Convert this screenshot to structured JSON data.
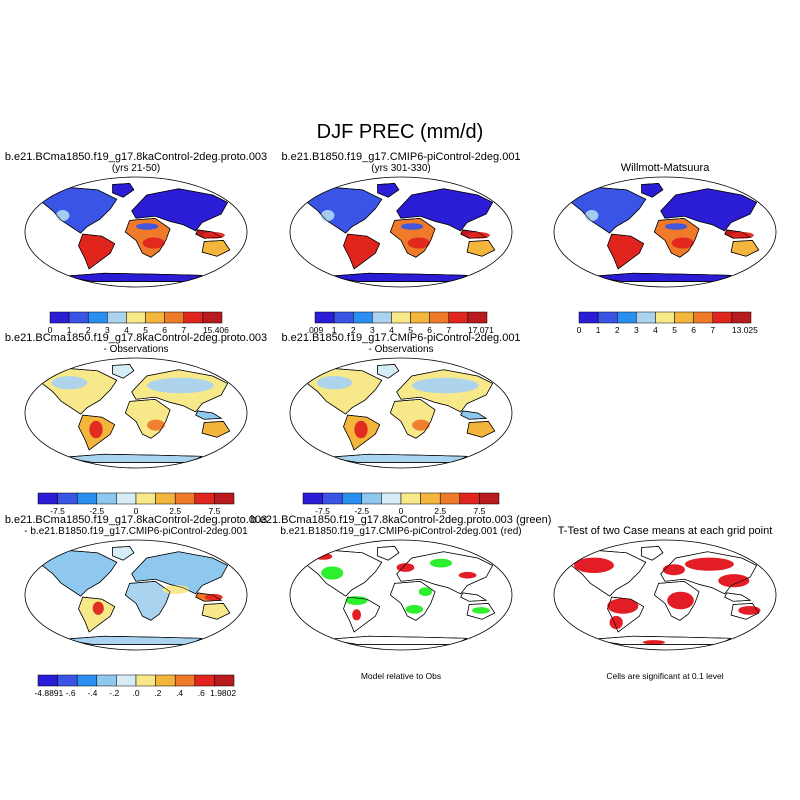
{
  "chart_data": {
    "type": "map-panel-grid",
    "title": "DJF PREC (mm/d)",
    "panels": [
      {
        "id": "p1",
        "type": "map",
        "title_lines": [
          "b.e21.BCma1850.f19_g17.8kaControl-2deg.proto.003",
          "(yrs 21-50)"
        ],
        "kind": "absolute",
        "colorbar": {
          "labels": [
            "0",
            "1",
            "2",
            "3",
            "4",
            "5",
            "6",
            "7",
            "15.406"
          ],
          "colors": [
            "#2b1cd6",
            "#3a55e6",
            "#2a8ff0",
            "#a9d3ef",
            "#f7e88a",
            "#f4b53c",
            "#ee7a2a",
            "#e0251e",
            "#b81a1e"
          ]
        }
      },
      {
        "id": "p2",
        "type": "map",
        "title_lines": [
          "b.e21.B1850.f19_g17.CMIP6-piControl-2deg.001",
          "(yrs 301-330)"
        ],
        "kind": "absolute",
        "colorbar": {
          "labels": [
            ".009",
            "1",
            "2",
            "3",
            "4",
            "5",
            "6",
            "7",
            "17.071"
          ],
          "colors": [
            "#2b1cd6",
            "#3a55e6",
            "#2a8ff0",
            "#a9d3ef",
            "#f7e88a",
            "#f4b53c",
            "#ee7a2a",
            "#e0251e",
            "#b81a1e"
          ]
        }
      },
      {
        "id": "p3",
        "type": "map",
        "title_lines": [
          "Willmott-Matsuura"
        ],
        "kind": "absolute",
        "colorbar": {
          "labels": [
            "0",
            "1",
            "2",
            "3",
            "4",
            "5",
            "6",
            "7",
            "13.025"
          ],
          "colors": [
            "#2b1cd6",
            "#3a55e6",
            "#2a8ff0",
            "#a9d3ef",
            "#f7e88a",
            "#f4b53c",
            "#ee7a2a",
            "#e0251e",
            "#b81a1e"
          ]
        }
      },
      {
        "id": "p4",
        "type": "map",
        "title_lines": [
          "b.e21.BCma1850.f19_g17.8kaControl-2deg.proto.003",
          "- Observations"
        ],
        "kind": "difference",
        "colorbar": {
          "labels": [
            "-7.5",
            "-2.5",
            "0",
            "2.5",
            "7.5"
          ],
          "colors": [
            "#2b1cd6",
            "#3a55e6",
            "#2a8ff0",
            "#8ec8ef",
            "#d6ecf7",
            "#f7e88a",
            "#f4b53c",
            "#ee7a2a",
            "#e0251e",
            "#b81a1e"
          ]
        }
      },
      {
        "id": "p5",
        "type": "map",
        "title_lines": [
          "b.e21.B1850.f19_g17.CMIP6-piControl-2deg.001",
          "- Observations"
        ],
        "kind": "difference",
        "colorbar": {
          "labels": [
            "-7.5",
            "-2.5",
            "0",
            "2.5",
            "7.5"
          ],
          "colors": [
            "#2b1cd6",
            "#3a55e6",
            "#2a8ff0",
            "#8ec8ef",
            "#d6ecf7",
            "#f7e88a",
            "#f4b53c",
            "#ee7a2a",
            "#e0251e",
            "#b81a1e"
          ]
        }
      },
      {
        "id": "p7",
        "type": "map",
        "title_lines": [
          "b.e21.BCma1850.f19_g17.8kaControl-2deg.proto.003",
          "- b.e21.B1850.f19_g17.CMIP6-piControl-2deg.001"
        ],
        "kind": "case-difference",
        "colorbar": {
          "labels": [
            "-4.8891",
            "-.6",
            "-.4",
            "-.2",
            ".0",
            ".2",
            ".4",
            ".6",
            "1.9802"
          ],
          "colors": [
            "#2b1cd6",
            "#3a55e6",
            "#2a8ff0",
            "#8ec8ef",
            "#d6ecf7",
            "#f7e88a",
            "#f4b53c",
            "#ee7a2a",
            "#e0251e",
            "#b81a1e"
          ]
        }
      },
      {
        "id": "p8",
        "type": "map",
        "title_lines": [
          "b.e21.BCma1850.f19_g17.8kaControl-2deg.proto.003 (green)",
          "b.e21.B1850.f19_g17.CMIP6-piControl-2deg.001 (red)"
        ],
        "kind": "relative",
        "footnote": "Model relative to Obs"
      },
      {
        "id": "p9",
        "type": "map",
        "title_lines": [
          "T-Test of two Case means at each grid point"
        ],
        "kind": "significance",
        "footnote": "Cells are significant at 0.1 level"
      }
    ]
  },
  "colors": {
    "land_outline": "#000000",
    "ocean": "#ffffff",
    "significant": "#e0111a",
    "model1_green": "#22ee22",
    "model2_red": "#e0111a"
  }
}
